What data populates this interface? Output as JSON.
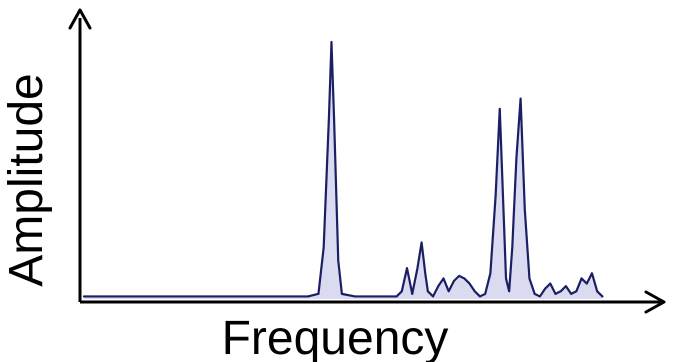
{
  "chart_data": {
    "type": "line",
    "xlabel": "Frequency",
    "ylabel": "Amplitude",
    "grid": false,
    "legend": "none",
    "colors": {
      "line": "#1b1f63",
      "fill": "#7a7cc9",
      "axes": "#000000"
    },
    "xlim": [
      0,
      100
    ],
    "ylim": [
      0,
      100
    ],
    "series": [
      {
        "values": [
          [
            0,
            1
          ],
          [
            4,
            1
          ],
          [
            8,
            1
          ],
          [
            12,
            1
          ],
          [
            16,
            1
          ],
          [
            20,
            1
          ],
          [
            24,
            1
          ],
          [
            28,
            1
          ],
          [
            32,
            1
          ],
          [
            36,
            1
          ],
          [
            40,
            1
          ],
          [
            43,
            1
          ],
          [
            45,
            2
          ],
          [
            46,
            20
          ],
          [
            47,
            70
          ],
          [
            47.5,
            100
          ],
          [
            48,
            70
          ],
          [
            48.8,
            15
          ],
          [
            49.5,
            2
          ],
          [
            52,
            1
          ],
          [
            56,
            1
          ],
          [
            60,
            1
          ],
          [
            61,
            3
          ],
          [
            62,
            12
          ],
          [
            62.6,
            6
          ],
          [
            63,
            2
          ],
          [
            64,
            12
          ],
          [
            64.8,
            22
          ],
          [
            65.5,
            10
          ],
          [
            66,
            3
          ],
          [
            67,
            1
          ],
          [
            68,
            5
          ],
          [
            69,
            8
          ],
          [
            70,
            3
          ],
          [
            71,
            7
          ],
          [
            72,
            9
          ],
          [
            73,
            8
          ],
          [
            74,
            6
          ],
          [
            75,
            3
          ],
          [
            76,
            1
          ],
          [
            77,
            2
          ],
          [
            78,
            10
          ],
          [
            79,
            40
          ],
          [
            79.8,
            74
          ],
          [
            80.6,
            30
          ],
          [
            81,
            8
          ],
          [
            81.6,
            3
          ],
          [
            82.2,
            20
          ],
          [
            83,
            55
          ],
          [
            83.8,
            78
          ],
          [
            84.6,
            35
          ],
          [
            85.5,
            8
          ],
          [
            86.5,
            2
          ],
          [
            87.5,
            1
          ],
          [
            88.5,
            4
          ],
          [
            89.5,
            6
          ],
          [
            90.5,
            2
          ],
          [
            91.5,
            3
          ],
          [
            92.5,
            5
          ],
          [
            93.5,
            2
          ],
          [
            94.5,
            3
          ],
          [
            95.5,
            8
          ],
          [
            96.5,
            6
          ],
          [
            97.5,
            10
          ],
          [
            98.5,
            3
          ],
          [
            99.5,
            1
          ]
        ]
      }
    ]
  }
}
